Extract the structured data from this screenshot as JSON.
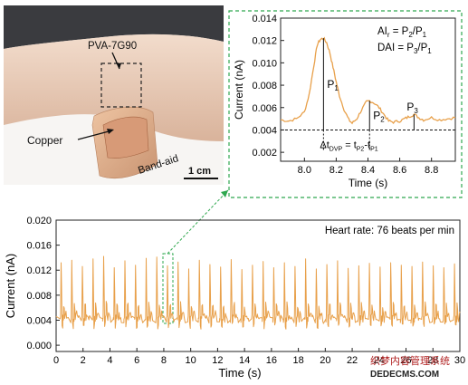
{
  "photo": {
    "label_sensor": "PVA-7G90",
    "label_copper": "Copper",
    "label_bandaid": "Band-aid",
    "scale_bar": "1 cm"
  },
  "colors": {
    "signal": "#e8a04a",
    "annotation_box": "#2fa84f",
    "skin": "#e9c9b4",
    "sleeve": "#3a3b3f",
    "bandaid": "#e1b38f"
  },
  "watermark": {
    "line1": "织梦内容管理系统",
    "line2": "DEDECMS.COM"
  },
  "chart_data": [
    {
      "type": "line",
      "title": "",
      "xlabel": "Time (s)",
      "ylabel": "Current (nA)",
      "xlim": [
        7.85,
        8.95
      ],
      "ylim": [
        0.0012,
        0.014
      ],
      "xticks": [
        "8.0",
        "8.2",
        "8.4",
        "8.6",
        "8.8"
      ],
      "yticks": [
        "0.002",
        "0.004",
        "0.006",
        "0.008",
        "0.010",
        "0.012",
        "0.014"
      ],
      "grid": false,
      "equations": {
        "ai_lhs": "AI",
        "ai_sub": "r",
        "ai_rhs": " = P",
        "ai_s2": "2",
        "ai_mid": "/P",
        "ai_s1": "1",
        "dai_lhs": "DAI = P",
        "dai_s3": "3",
        "dai_mid": "/P",
        "dai_s1": "1"
      },
      "peaks": [
        {
          "label": "P",
          "sub": "1",
          "x": 8.12,
          "y": 0.0122
        },
        {
          "label": "P",
          "sub": "2",
          "x": 8.41,
          "y": 0.0066
        },
        {
          "label": "P",
          "sub": "3",
          "x": 8.69,
          "y": 0.0054
        }
      ],
      "baseline_y": 0.004,
      "delta": {
        "text": "Δt",
        "sub1": "DVP",
        "mid": " = t",
        "sub2": "P2",
        "dash": "-t",
        "sub3": "P1"
      },
      "series": [
        {
          "x": [
            7.85,
            7.9,
            7.95,
            8.0,
            8.03,
            8.06,
            8.08,
            8.1,
            8.12,
            8.14,
            8.16,
            8.18,
            8.2,
            8.22,
            8.25,
            8.28,
            8.3,
            8.33,
            8.36,
            8.39,
            8.41,
            8.44,
            8.47,
            8.5,
            8.53,
            8.56,
            8.6,
            8.63,
            8.66,
            8.69,
            8.72,
            8.75,
            8.8,
            8.85,
            8.9,
            8.95
          ],
          "y": [
            0.0049,
            0.0048,
            0.005,
            0.0056,
            0.0072,
            0.0098,
            0.0116,
            0.0121,
            0.0122,
            0.0118,
            0.0109,
            0.0096,
            0.0083,
            0.0071,
            0.0058,
            0.0049,
            0.0046,
            0.005,
            0.0058,
            0.0065,
            0.0066,
            0.0064,
            0.006,
            0.0054,
            0.0048,
            0.0047,
            0.0048,
            0.005,
            0.0052,
            0.0054,
            0.0051,
            0.0049,
            0.0051,
            0.0049,
            0.005,
            0.0051
          ]
        }
      ]
    },
    {
      "type": "line",
      "title": "",
      "xlabel": "Time (s)",
      "ylabel": "Current (nA)",
      "xlim": [
        0,
        30
      ],
      "ylim": [
        -0.001,
        0.02
      ],
      "xticks": [
        "0",
        "2",
        "4",
        "6",
        "8",
        "10",
        "12",
        "14",
        "16",
        "18",
        "20",
        "22",
        "24",
        "26",
        "28",
        "30"
      ],
      "yticks": [
        "0.000",
        "0.004",
        "0.008",
        "0.012",
        "0.016",
        "0.020"
      ],
      "annotation": "Heart rate: 76 beats per min",
      "zoom_window": [
        7.85,
        8.95
      ],
      "grid": false,
      "series": [
        {
          "beat_period_s": 0.79,
          "first_beat_s": 0.3,
          "baseline": 0.004,
          "peak_values": [
            0.0132,
            0.0136,
            0.0126,
            0.0138,
            0.0142,
            0.0124,
            0.0135,
            0.0128,
            0.0139,
            0.0141,
            0.0127,
            0.0133,
            0.0122,
            0.0136,
            0.0129,
            0.0125,
            0.0137,
            0.0121,
            0.0128,
            0.0134,
            0.0124,
            0.0132,
            0.0126,
            0.0138,
            0.0122,
            0.0129,
            0.0135,
            0.0123,
            0.0127,
            0.0131,
            0.0125,
            0.0132,
            0.0128,
            0.0126,
            0.0133,
            0.0127,
            0.0124,
            0.013
          ]
        }
      ]
    }
  ]
}
